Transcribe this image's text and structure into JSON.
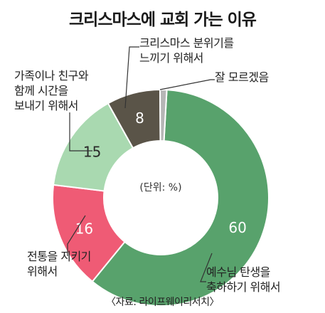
{
  "title": "크리스마스에 교회 가는 이유",
  "unit_label": "(단위: %)",
  "source": "〈자료: 라이프웨이리서치〉",
  "chart_data": {
    "type": "pie",
    "variant": "donut",
    "unit": "%",
    "slices": [
      {
        "label_lines": [
          "예수님 탄생을",
          "축하하기 위해서"
        ],
        "value": 60,
        "color": "#58a26c",
        "text_color": "#ffffff"
      },
      {
        "label_lines": [
          "전통을 지키기",
          "위해서"
        ],
        "value": 16,
        "color": "#ef5b75",
        "text_color": "#ffffff"
      },
      {
        "label_lines": [
          "가족이나 친구와",
          "함께 시간을",
          "보내기 위해서"
        ],
        "value": 15,
        "color": "#a9d9b0",
        "text_color": "#2a2a2a"
      },
      {
        "label_lines": [
          "크리스마스 분위기를",
          "느끼기 위해서"
        ],
        "value": 8,
        "color": "#5a5448",
        "text_color": "#ffffff"
      },
      {
        "label_lines": [
          "잘 모르겠음"
        ],
        "value": 1,
        "color": "#b6b6b6",
        "text_color": "#2a2a2a"
      }
    ]
  }
}
